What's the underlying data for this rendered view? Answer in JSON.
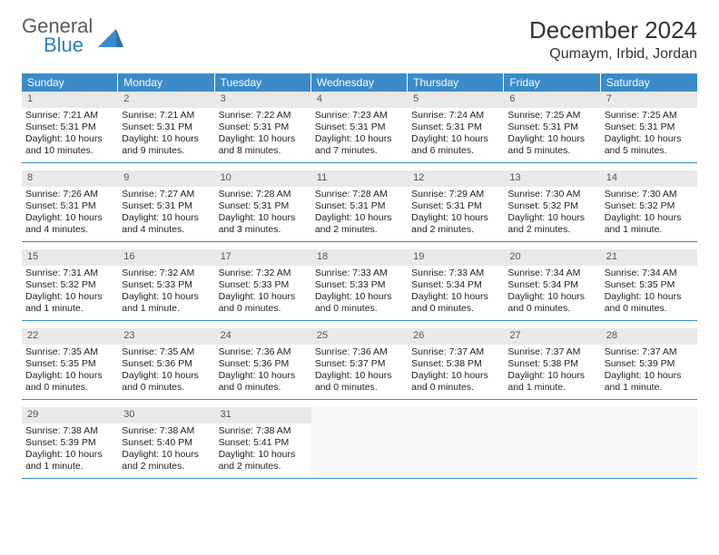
{
  "logo": {
    "line1": "General",
    "line2": "Blue"
  },
  "colors": {
    "header_bar": "#3b8bc9",
    "daynum_bg": "#e9e9e9",
    "week_border": "#3b8bc9",
    "logo_gray": "#5a5a5a",
    "logo_blue": "#2f7fc2",
    "logo_shape": "#2f6fa8"
  },
  "title": "December 2024",
  "location": "Qumaym, Irbid, Jordan",
  "day_names": [
    "Sunday",
    "Monday",
    "Tuesday",
    "Wednesday",
    "Thursday",
    "Friday",
    "Saturday"
  ],
  "weeks": [
    [
      {
        "n": "1",
        "sr": "Sunrise: 7:21 AM",
        "ss": "Sunset: 5:31 PM",
        "d1": "Daylight: 10 hours",
        "d2": "and 10 minutes."
      },
      {
        "n": "2",
        "sr": "Sunrise: 7:21 AM",
        "ss": "Sunset: 5:31 PM",
        "d1": "Daylight: 10 hours",
        "d2": "and 9 minutes."
      },
      {
        "n": "3",
        "sr": "Sunrise: 7:22 AM",
        "ss": "Sunset: 5:31 PM",
        "d1": "Daylight: 10 hours",
        "d2": "and 8 minutes."
      },
      {
        "n": "4",
        "sr": "Sunrise: 7:23 AM",
        "ss": "Sunset: 5:31 PM",
        "d1": "Daylight: 10 hours",
        "d2": "and 7 minutes."
      },
      {
        "n": "5",
        "sr": "Sunrise: 7:24 AM",
        "ss": "Sunset: 5:31 PM",
        "d1": "Daylight: 10 hours",
        "d2": "and 6 minutes."
      },
      {
        "n": "6",
        "sr": "Sunrise: 7:25 AM",
        "ss": "Sunset: 5:31 PM",
        "d1": "Daylight: 10 hours",
        "d2": "and 5 minutes."
      },
      {
        "n": "7",
        "sr": "Sunrise: 7:25 AM",
        "ss": "Sunset: 5:31 PM",
        "d1": "Daylight: 10 hours",
        "d2": "and 5 minutes."
      }
    ],
    [
      {
        "n": "8",
        "sr": "Sunrise: 7:26 AM",
        "ss": "Sunset: 5:31 PM",
        "d1": "Daylight: 10 hours",
        "d2": "and 4 minutes."
      },
      {
        "n": "9",
        "sr": "Sunrise: 7:27 AM",
        "ss": "Sunset: 5:31 PM",
        "d1": "Daylight: 10 hours",
        "d2": "and 4 minutes."
      },
      {
        "n": "10",
        "sr": "Sunrise: 7:28 AM",
        "ss": "Sunset: 5:31 PM",
        "d1": "Daylight: 10 hours",
        "d2": "and 3 minutes."
      },
      {
        "n": "11",
        "sr": "Sunrise: 7:28 AM",
        "ss": "Sunset: 5:31 PM",
        "d1": "Daylight: 10 hours",
        "d2": "and 2 minutes."
      },
      {
        "n": "12",
        "sr": "Sunrise: 7:29 AM",
        "ss": "Sunset: 5:31 PM",
        "d1": "Daylight: 10 hours",
        "d2": "and 2 minutes."
      },
      {
        "n": "13",
        "sr": "Sunrise: 7:30 AM",
        "ss": "Sunset: 5:32 PM",
        "d1": "Daylight: 10 hours",
        "d2": "and 2 minutes."
      },
      {
        "n": "14",
        "sr": "Sunrise: 7:30 AM",
        "ss": "Sunset: 5:32 PM",
        "d1": "Daylight: 10 hours",
        "d2": "and 1 minute."
      }
    ],
    [
      {
        "n": "15",
        "sr": "Sunrise: 7:31 AM",
        "ss": "Sunset: 5:32 PM",
        "d1": "Daylight: 10 hours",
        "d2": "and 1 minute."
      },
      {
        "n": "16",
        "sr": "Sunrise: 7:32 AM",
        "ss": "Sunset: 5:33 PM",
        "d1": "Daylight: 10 hours",
        "d2": "and 1 minute."
      },
      {
        "n": "17",
        "sr": "Sunrise: 7:32 AM",
        "ss": "Sunset: 5:33 PM",
        "d1": "Daylight: 10 hours",
        "d2": "and 0 minutes."
      },
      {
        "n": "18",
        "sr": "Sunrise: 7:33 AM",
        "ss": "Sunset: 5:33 PM",
        "d1": "Daylight: 10 hours",
        "d2": "and 0 minutes."
      },
      {
        "n": "19",
        "sr": "Sunrise: 7:33 AM",
        "ss": "Sunset: 5:34 PM",
        "d1": "Daylight: 10 hours",
        "d2": "and 0 minutes."
      },
      {
        "n": "20",
        "sr": "Sunrise: 7:34 AM",
        "ss": "Sunset: 5:34 PM",
        "d1": "Daylight: 10 hours",
        "d2": "and 0 minutes."
      },
      {
        "n": "21",
        "sr": "Sunrise: 7:34 AM",
        "ss": "Sunset: 5:35 PM",
        "d1": "Daylight: 10 hours",
        "d2": "and 0 minutes."
      }
    ],
    [
      {
        "n": "22",
        "sr": "Sunrise: 7:35 AM",
        "ss": "Sunset: 5:35 PM",
        "d1": "Daylight: 10 hours",
        "d2": "and 0 minutes."
      },
      {
        "n": "23",
        "sr": "Sunrise: 7:35 AM",
        "ss": "Sunset: 5:36 PM",
        "d1": "Daylight: 10 hours",
        "d2": "and 0 minutes."
      },
      {
        "n": "24",
        "sr": "Sunrise: 7:36 AM",
        "ss": "Sunset: 5:36 PM",
        "d1": "Daylight: 10 hours",
        "d2": "and 0 minutes."
      },
      {
        "n": "25",
        "sr": "Sunrise: 7:36 AM",
        "ss": "Sunset: 5:37 PM",
        "d1": "Daylight: 10 hours",
        "d2": "and 0 minutes."
      },
      {
        "n": "26",
        "sr": "Sunrise: 7:37 AM",
        "ss": "Sunset: 5:38 PM",
        "d1": "Daylight: 10 hours",
        "d2": "and 0 minutes."
      },
      {
        "n": "27",
        "sr": "Sunrise: 7:37 AM",
        "ss": "Sunset: 5:38 PM",
        "d1": "Daylight: 10 hours",
        "d2": "and 1 minute."
      },
      {
        "n": "28",
        "sr": "Sunrise: 7:37 AM",
        "ss": "Sunset: 5:39 PM",
        "d1": "Daylight: 10 hours",
        "d2": "and 1 minute."
      }
    ],
    [
      {
        "n": "29",
        "sr": "Sunrise: 7:38 AM",
        "ss": "Sunset: 5:39 PM",
        "d1": "Daylight: 10 hours",
        "d2": "and 1 minute."
      },
      {
        "n": "30",
        "sr": "Sunrise: 7:38 AM",
        "ss": "Sunset: 5:40 PM",
        "d1": "Daylight: 10 hours",
        "d2": "and 2 minutes."
      },
      {
        "n": "31",
        "sr": "Sunrise: 7:38 AM",
        "ss": "Sunset: 5:41 PM",
        "d1": "Daylight: 10 hours",
        "d2": "and 2 minutes."
      },
      null,
      null,
      null,
      null
    ]
  ]
}
